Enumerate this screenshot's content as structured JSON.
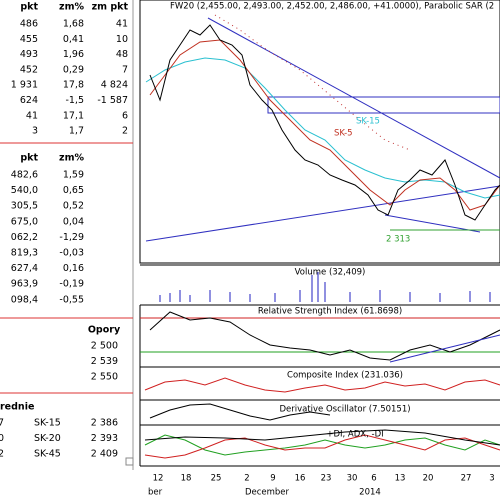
{
  "quotes_table": {
    "header": [
      "pkt",
      "zm%",
      "zm pkt"
    ],
    "rows": [
      [
        "486",
        "1,68",
        "41"
      ],
      [
        "455",
        "0,41",
        "10"
      ],
      [
        "493",
        "1,96",
        "48"
      ],
      [
        "452",
        "0,29",
        "7"
      ],
      [
        "1 931",
        "17,8",
        "4 824"
      ],
      [
        "624",
        "-1,5",
        "-1 587"
      ],
      [
        "41",
        "17,1",
        "6"
      ],
      [
        "3",
        "1,7",
        "2"
      ]
    ]
  },
  "index_table": {
    "header": [
      "pkt",
      "zm%"
    ],
    "rows": [
      [
        "482,6",
        "1,59"
      ],
      [
        "540,0",
        "0,65"
      ],
      [
        "305,5",
        "0,52"
      ],
      [
        "675,0",
        "0,04"
      ],
      [
        "062,2",
        "-1,29"
      ],
      [
        "819,3",
        "-0,03"
      ],
      [
        "627,4",
        "0,16"
      ],
      [
        "963,9",
        "-0,19"
      ],
      [
        "098,4",
        "-0,55"
      ]
    ]
  },
  "resistance": {
    "header": "Opory",
    "rows": [
      "2 500",
      "2 539",
      "2 550"
    ]
  },
  "averages": {
    "header": "rednie",
    "rows": [
      [
        "7",
        "SK-15",
        "2 386"
      ],
      [
        "0",
        "SK-20",
        "2 393"
      ],
      [
        "2",
        "SK-45",
        "2 409"
      ]
    ]
  },
  "chart": {
    "title": "FW20 (2,455.00, 2,493.00, 2,452.00, 2,486.00, +41.0000), Parabolic SAR (2",
    "annotations": [
      "SK-15",
      "SK-5",
      "2 313"
    ],
    "panels": [
      "Volume (32,409)",
      "Relative Strength Index (61.8698)",
      "Composite Index (231.036)",
      "Derivative Oscillator (7.50151)",
      "+DI, ADX, -DI"
    ],
    "x_days": [
      "12",
      "18",
      "25",
      "2",
      "9",
      "16",
      "23",
      "30",
      "6",
      "13",
      "20",
      "27",
      "3"
    ],
    "x_months": [
      "ber",
      "December",
      "2014"
    ]
  }
}
